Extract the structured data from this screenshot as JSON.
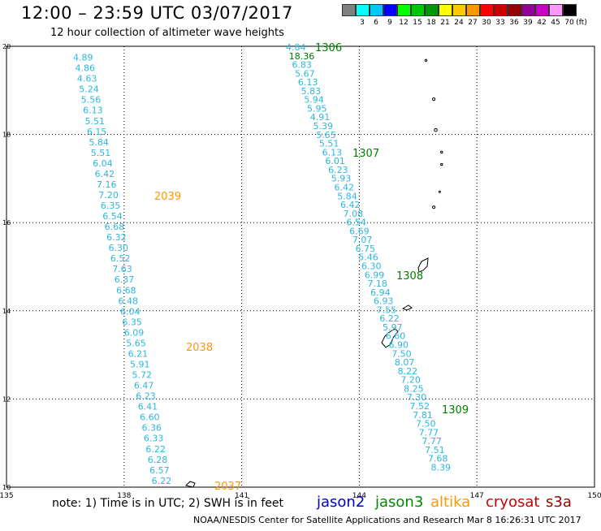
{
  "header": {
    "title": "12:00 – 23:59 UTC 03/07/2017",
    "subtitle": "12 hour collection of altimeter wave heights"
  },
  "colorbar": {
    "unit_label": "(ft)",
    "entries": [
      {
        "label": "",
        "color": "#808080"
      },
      {
        "label": "3",
        "color": "#00ffff"
      },
      {
        "label": "6",
        "color": "#00c8ff"
      },
      {
        "label": "9",
        "color": "#0000ff"
      },
      {
        "label": "12",
        "color": "#00ff00"
      },
      {
        "label": "15",
        "color": "#00c800"
      },
      {
        "label": "18",
        "color": "#009600"
      },
      {
        "label": "21",
        "color": "#ffff00"
      },
      {
        "label": "24",
        "color": "#ffc800"
      },
      {
        "label": "27",
        "color": "#ff9600"
      },
      {
        "label": "30",
        "color": "#ff0000"
      },
      {
        "label": "33",
        "color": "#c80000"
      },
      {
        "label": "36",
        "color": "#960000"
      },
      {
        "label": "39",
        "color": "#960096"
      },
      {
        "label": "42",
        "color": "#c800c8"
      },
      {
        "label": "45",
        "color": "#ff96ff"
      },
      {
        "label": "70",
        "color": "#000000"
      }
    ]
  },
  "map": {
    "lon_ticks": [
      "135",
      "138",
      "141",
      "144",
      "147",
      "150"
    ],
    "lat_ticks": [
      "20",
      "18",
      "16",
      "14",
      "12",
      "10"
    ],
    "lon_range": [
      135,
      150
    ],
    "lat_range": [
      10,
      20
    ],
    "track_west": [
      {
        "lon": 136.7,
        "lat": 19.75,
        "v": "4.89"
      },
      {
        "lon": 136.75,
        "lat": 19.51,
        "v": "4.86"
      },
      {
        "lon": 136.8,
        "lat": 19.27,
        "v": "4.63"
      },
      {
        "lon": 136.85,
        "lat": 19.03,
        "v": "5.24"
      },
      {
        "lon": 136.9,
        "lat": 18.79,
        "v": "5.56"
      },
      {
        "lon": 136.95,
        "lat": 18.55,
        "v": "6.13"
      },
      {
        "lon": 137.0,
        "lat": 18.31,
        "v": "5.51"
      },
      {
        "lon": 137.05,
        "lat": 18.07,
        "v": "6.15"
      },
      {
        "lon": 137.1,
        "lat": 17.83,
        "v": "5.84"
      },
      {
        "lon": 137.15,
        "lat": 17.59,
        "v": "5.51"
      },
      {
        "lon": 137.2,
        "lat": 17.35,
        "v": "6.04"
      },
      {
        "lon": 137.25,
        "lat": 17.11,
        "v": "6.42"
      },
      {
        "lon": 137.3,
        "lat": 16.87,
        "v": "7.16"
      },
      {
        "lon": 137.35,
        "lat": 16.63,
        "v": "7.20"
      },
      {
        "lon": 137.4,
        "lat": 16.39,
        "v": "6.35"
      },
      {
        "lon": 137.45,
        "lat": 16.15,
        "v": "6.54"
      },
      {
        "lon": 137.5,
        "lat": 15.91,
        "v": "6.68"
      },
      {
        "lon": 137.55,
        "lat": 15.67,
        "v": "6.32"
      },
      {
        "lon": 137.6,
        "lat": 15.43,
        "v": "6.30"
      },
      {
        "lon": 137.65,
        "lat": 15.19,
        "v": "6.52"
      },
      {
        "lon": 137.7,
        "lat": 14.95,
        "v": "7.63"
      },
      {
        "lon": 137.75,
        "lat": 14.71,
        "v": "6.37"
      },
      {
        "lon": 137.8,
        "lat": 14.47,
        "v": "6.68"
      },
      {
        "lon": 137.85,
        "lat": 14.23,
        "v": "6.48"
      },
      {
        "lon": 137.9,
        "lat": 13.99,
        "v": "6.04"
      },
      {
        "lon": 137.95,
        "lat": 13.75,
        "v": "6.35"
      },
      {
        "lon": 138.0,
        "lat": 13.51,
        "v": "6.09"
      },
      {
        "lon": 138.05,
        "lat": 13.27,
        "v": "5.65"
      },
      {
        "lon": 138.1,
        "lat": 13.03,
        "v": "6.21"
      },
      {
        "lon": 138.15,
        "lat": 12.79,
        "v": "5.91"
      },
      {
        "lon": 138.2,
        "lat": 12.55,
        "v": "5.72"
      },
      {
        "lon": 138.25,
        "lat": 12.31,
        "v": "6.47"
      },
      {
        "lon": 138.3,
        "lat": 12.07,
        "v": "6.23"
      },
      {
        "lon": 138.35,
        "lat": 11.83,
        "v": "6.41"
      },
      {
        "lon": 138.4,
        "lat": 11.59,
        "v": "6.60"
      },
      {
        "lon": 138.45,
        "lat": 11.35,
        "v": "6.36"
      },
      {
        "lon": 138.5,
        "lat": 11.11,
        "v": "6.33"
      },
      {
        "lon": 138.55,
        "lat": 10.87,
        "v": "6.22"
      },
      {
        "lon": 138.6,
        "lat": 10.63,
        "v": "6.28"
      },
      {
        "lon": 138.65,
        "lat": 10.39,
        "v": "6.57"
      },
      {
        "lon": 138.7,
        "lat": 10.15,
        "v": "6.22"
      }
    ],
    "track_east": [
      {
        "lon": 141.7,
        "lat": 19.8,
        "v": "4.84"
      },
      {
        "lon": 141.8,
        "lat": 19.56,
        "v": "18.36"
      },
      {
        "lon": 141.85,
        "lat": 19.32,
        "v": "6.83"
      },
      {
        "lon": 141.95,
        "lat": 19.08,
        "v": "5.67"
      },
      {
        "lon": 142.0,
        "lat": 18.84,
        "v": "6.13"
      },
      {
        "lon": 142.05,
        "lat": 18.6,
        "v": "5.83"
      },
      {
        "lon": 142.1,
        "lat": 18.36,
        "v": "5.94"
      },
      {
        "lon": 142.15,
        "lat": 18.12,
        "v": "5.95"
      },
      {
        "lon": 142.2,
        "lat": 17.88,
        "v": "4.91"
      },
      {
        "lon": 142.25,
        "lat": 17.64,
        "v": "5.39"
      },
      {
        "lon": 142.3,
        "lat": 17.4,
        "v": "5.65"
      },
      {
        "lon": 142.35,
        "lat": 17.16,
        "v": "5.51"
      },
      {
        "lon": 142.4,
        "lat": 16.92,
        "v": "6.13"
      },
      {
        "lon": 142.45,
        "lat": 16.68,
        "v": "6.01"
      },
      {
        "lon": 142.5,
        "lat": 16.44,
        "v": "6.23"
      },
      {
        "lon": 142.55,
        "lat": 16.2,
        "v": "5.93"
      },
      {
        "lon": 142.6,
        "lat": 15.96,
        "v": "6.42"
      },
      {
        "lon": 142.65,
        "lat": 15.72,
        "v": "5.84"
      },
      {
        "lon": 142.7,
        "lat": 15.48,
        "v": "6.42"
      },
      {
        "lon": 142.75,
        "lat": 15.24,
        "v": "7.08"
      },
      {
        "lon": 142.8,
        "lat": 15.0,
        "v": "6.54"
      },
      {
        "lon": 142.85,
        "lat": 14.76,
        "v": "6.69"
      },
      {
        "lon": 142.9,
        "lat": 14.52,
        "v": "7.07"
      },
      {
        "lon": 142.95,
        "lat": 14.28,
        "v": "6.75"
      },
      {
        "lon": 143.0,
        "lat": 14.04,
        "v": "5.46"
      },
      {
        "lon": 143.05,
        "lat": 13.8,
        "v": "6.30"
      },
      {
        "lon": 143.1,
        "lat": 13.56,
        "v": "6.99"
      },
      {
        "lon": 143.15,
        "lat": 13.32,
        "v": "7.18"
      },
      {
        "lon": 143.2,
        "lat": 13.08,
        "v": "6.94"
      },
      {
        "lon": 143.25,
        "lat": 12.84,
        "v": "6.93"
      },
      {
        "lon": 143.3,
        "lat": 12.6,
        "v": "7.55"
      },
      {
        "lon": 143.35,
        "lat": 12.36,
        "v": "6.22"
      },
      {
        "lon": 143.4,
        "lat": 12.12,
        "v": "5.97"
      },
      {
        "lon": 143.45,
        "lat": 11.88,
        "v": "6.60"
      },
      {
        "lon": 143.5,
        "lat": 11.64,
        "v": "6.90"
      },
      {
        "lon": 143.55,
        "lat": 11.4,
        "v": "7.50"
      },
      {
        "lon": 143.6,
        "lat": 11.16,
        "v": "8.07"
      },
      {
        "lon": 143.65,
        "lat": 10.92,
        "v": "8.22"
      },
      {
        "lon": 143.7,
        "lat": 10.68,
        "v": "7.20"
      },
      {
        "lon": 143.75,
        "lat": 10.44,
        "v": "8.25"
      },
      {
        "lon": 143.8,
        "lat": 10.2,
        "v": "7.30"
      },
      {
        "lon": 143.85,
        "lat": 9.96,
        "v": "7.52"
      },
      {
        "lon": 143.9,
        "lat": 9.72,
        "v": "7.81"
      },
      {
        "lon": 143.95,
        "lat": 9.48,
        "v": "7.50"
      },
      {
        "lon": 144.0,
        "lat": 9.24,
        "v": "7.77"
      },
      {
        "lon": 144.05,
        "lat": 9.0,
        "v": "7.77"
      },
      {
        "lon": 144.1,
        "lat": 8.76,
        "v": "7.51"
      },
      {
        "lon": 144.15,
        "lat": 8.52,
        "v": "7.68"
      },
      {
        "lon": 144.2,
        "lat": 8.28,
        "v": "8.39"
      }
    ],
    "time_labels": [
      {
        "text": "1306",
        "color": "#008000",
        "lon": 142.2,
        "lat": 19.82
      },
      {
        "text": "1307",
        "color": "#008000",
        "lon": 143.0,
        "lat": 17.25
      },
      {
        "text": "1308",
        "color": "#008000",
        "lon": 144.4,
        "lat": 14.55
      },
      {
        "text": "1309",
        "color": "#008000",
        "lon": 145.8,
        "lat": 11.95
      },
      {
        "text": "2039",
        "color": "#ff9900",
        "lon": 139.0,
        "lat": 16.6
      },
      {
        "text": "2038",
        "color": "#ff9900",
        "lon": 139.7,
        "lat": 13.2
      },
      {
        "text": "2037",
        "color": "#ff9900",
        "lon": 140.3,
        "lat": 10.1
      }
    ]
  },
  "footer": {
    "note": "note:  1) Time is in UTC;  2) SWH is in feet",
    "satellites": [
      {
        "name": "jason2",
        "color": "#0000cc"
      },
      {
        "name": "jason3",
        "color": "#008800"
      },
      {
        "name": "altika",
        "color": "#ff9900"
      },
      {
        "name": "cryosat",
        "color": "#cc0000"
      },
      {
        "name": "s3a",
        "color": "#990000"
      }
    ],
    "credit": "NOAA/NESDIS Center for Satellite Applications and Research    Mar  8 16:26:31 UTC 2017"
  }
}
